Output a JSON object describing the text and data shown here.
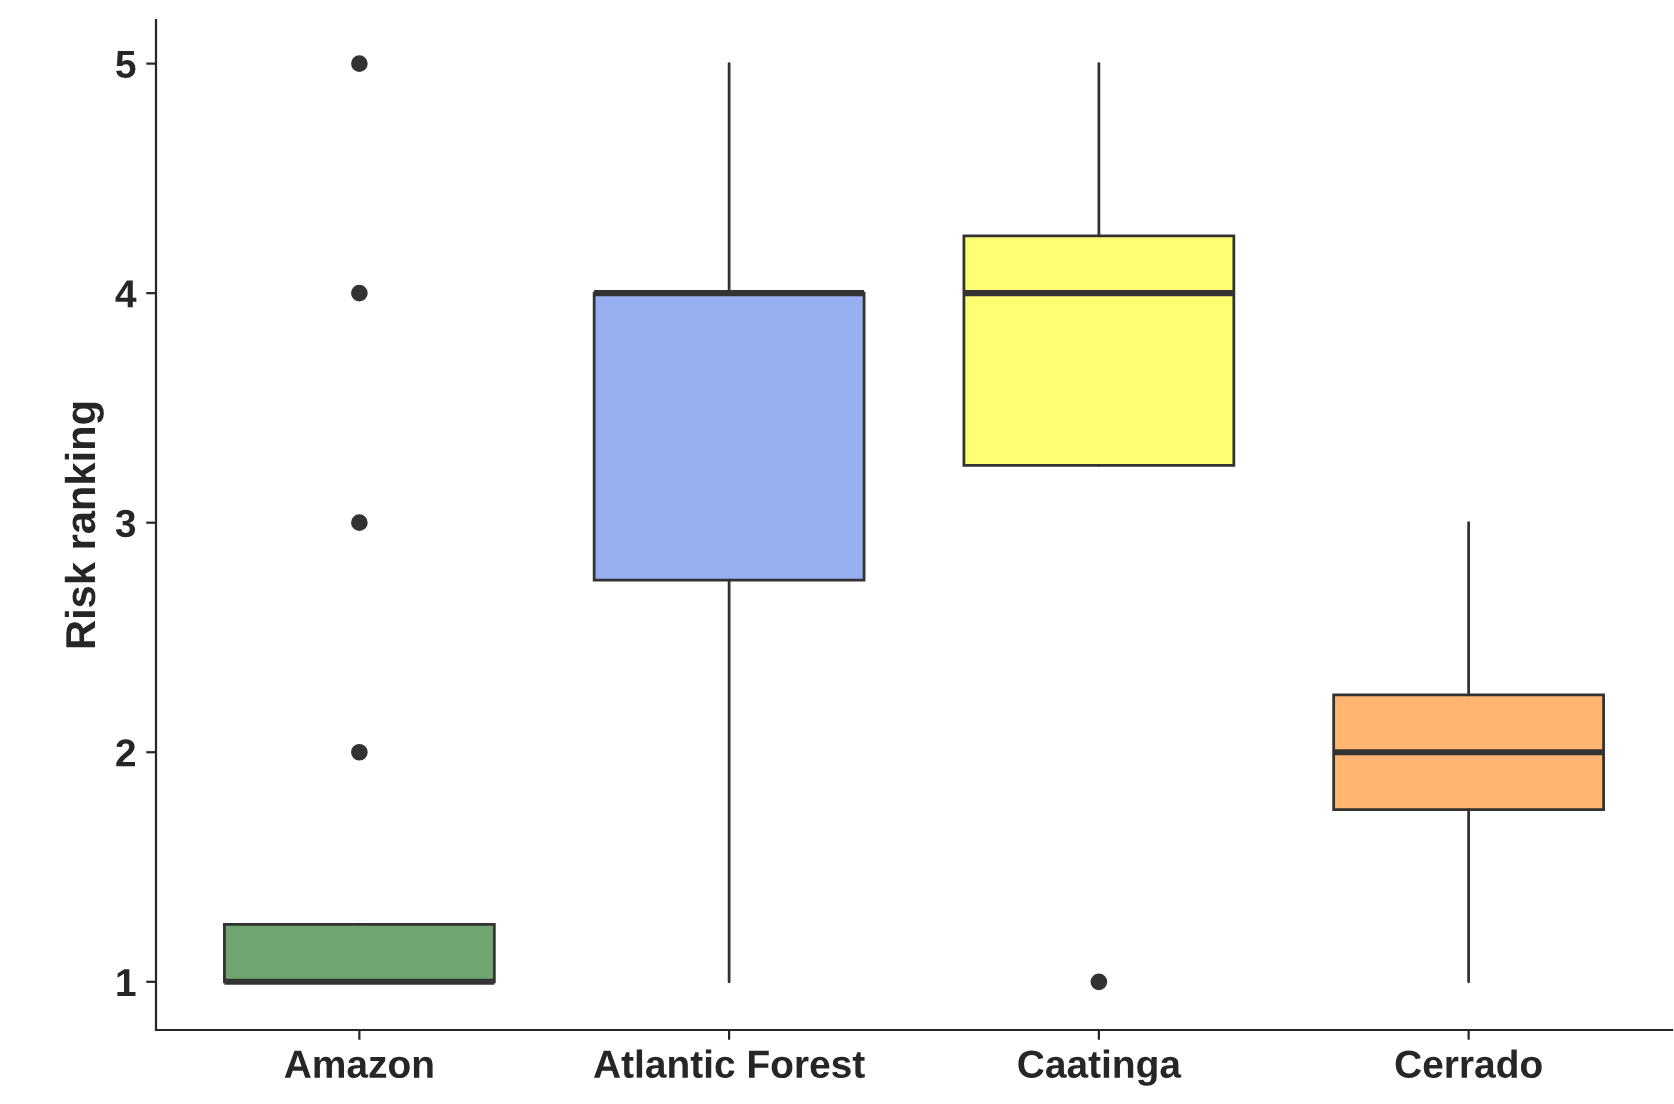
{
  "chart_data": {
    "type": "box",
    "ylabel": "Risk ranking",
    "categories": [
      "Amazon",
      "Atlantic Forest",
      "Caatinga",
      "Cerrado"
    ],
    "colors": [
      "#6fa66f",
      "#97aef0",
      "#ffff73",
      "#ffb673"
    ],
    "boxes": [
      {
        "low": 1,
        "q1": 1,
        "median": 1,
        "q3": 1.25,
        "high": 1.25,
        "outliers": [
          2,
          3,
          4,
          5
        ]
      },
      {
        "low": 1,
        "q1": 2.75,
        "median": 4,
        "q3": 4,
        "high": 5
      },
      {
        "low": 3.25,
        "q1": 3.25,
        "median": 4,
        "q3": 4.25,
        "high": 5,
        "outliers": [
          1
        ]
      },
      {
        "low": 1,
        "q1": 1.75,
        "median": 2,
        "q3": 2.25,
        "high": 3
      }
    ],
    "ylim": [
      0.79,
      5.19
    ],
    "yticks": [
      1,
      2,
      3,
      4,
      5
    ]
  }
}
